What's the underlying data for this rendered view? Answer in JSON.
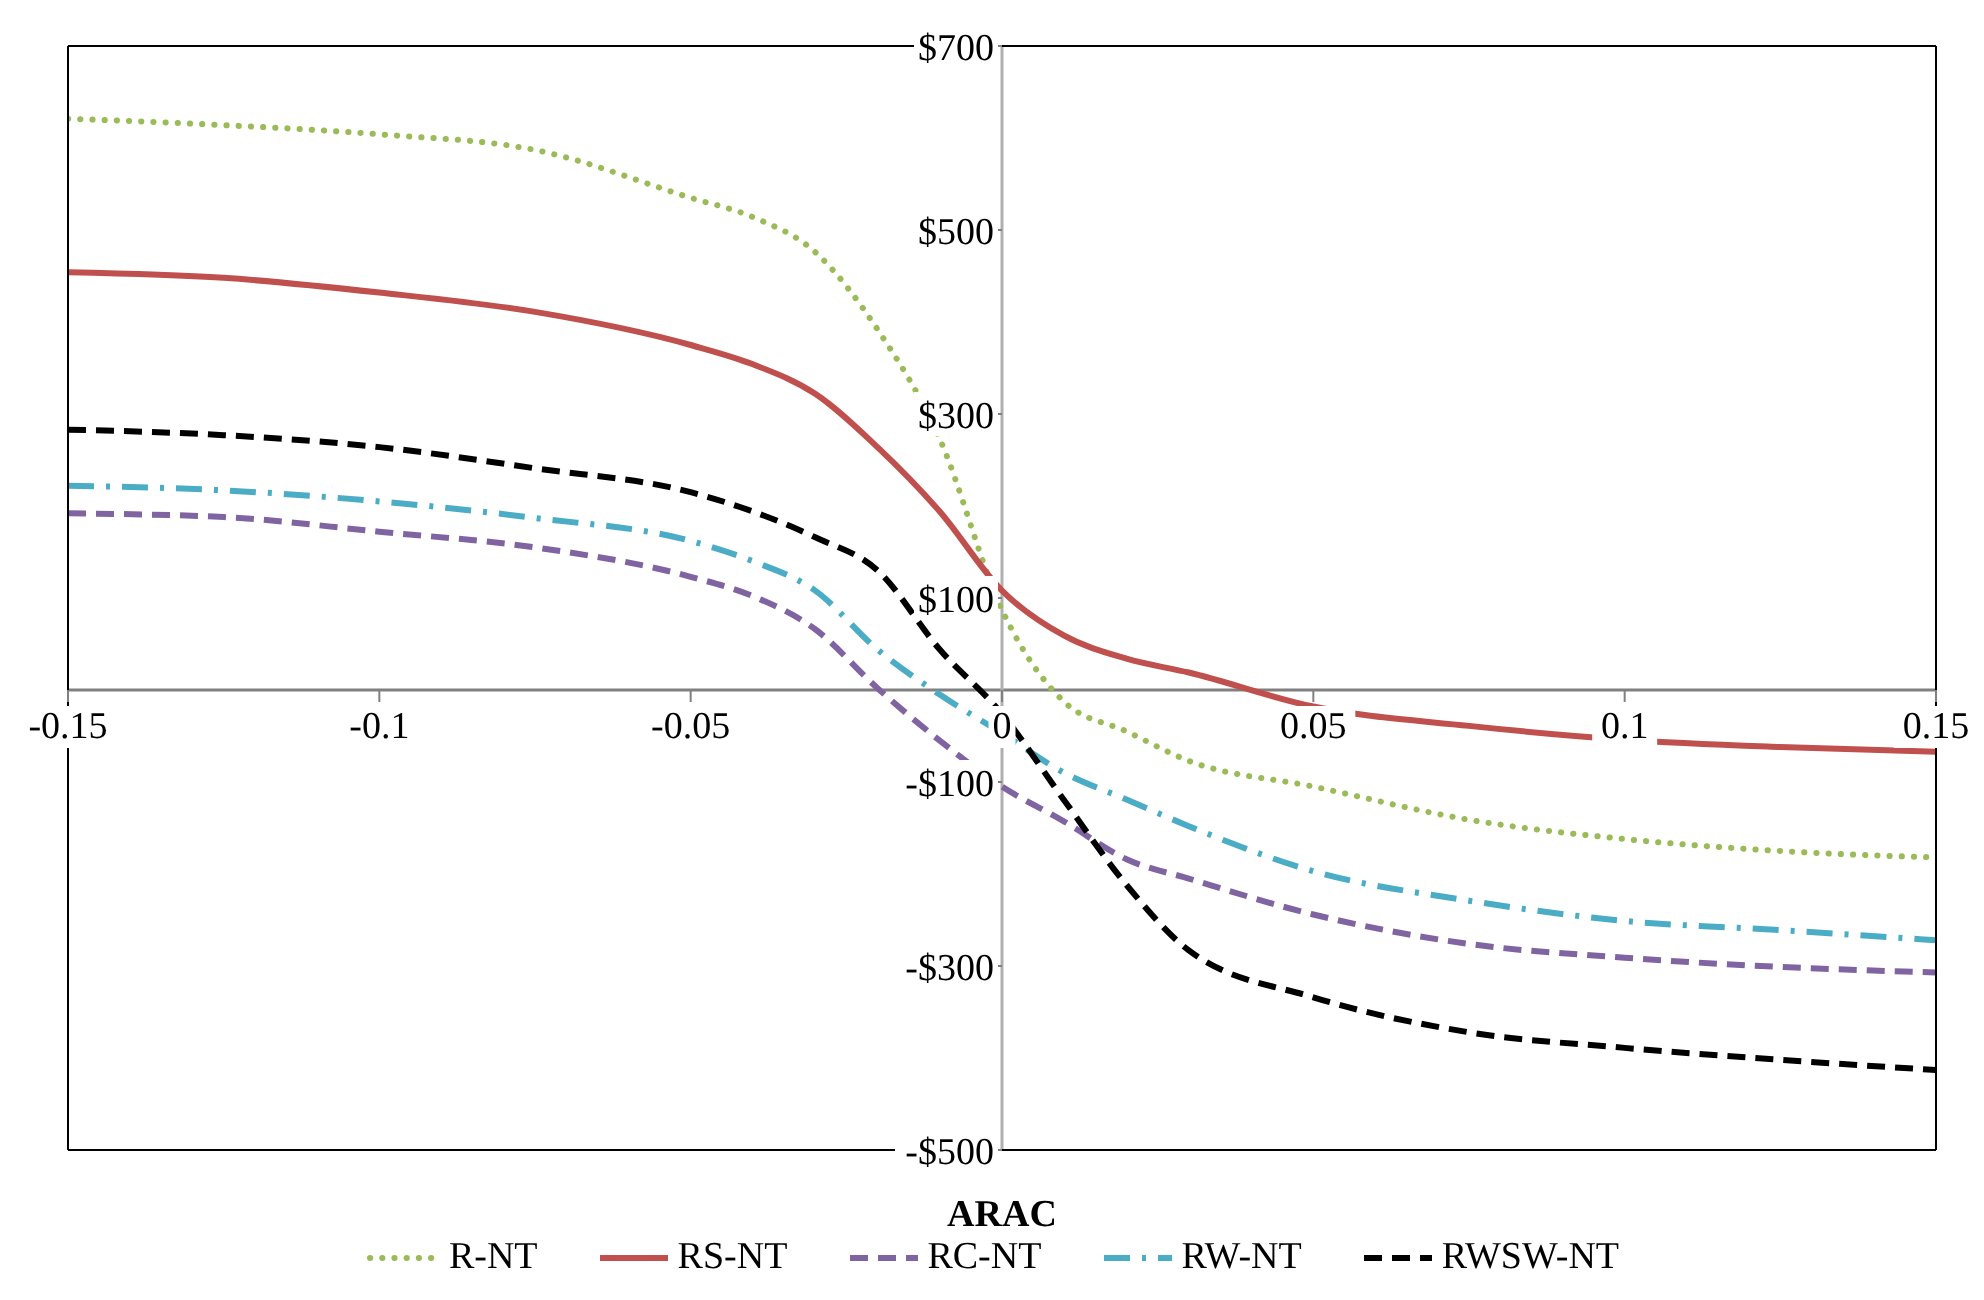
{
  "chart_data": {
    "type": "line",
    "xlabel": "ARAC",
    "x": [
      -0.15,
      -0.125,
      -0.1,
      -0.075,
      -0.05,
      -0.04,
      -0.03,
      -0.02,
      -0.01,
      0,
      0.01,
      0.02,
      0.03,
      0.05,
      0.075,
      0.1,
      0.125,
      0.15
    ],
    "series": [
      {
        "name": "R-NT",
        "color": "#9bbb59",
        "line_style": "dotted",
        "values": [
          621,
          614,
          604,
          587,
          535,
          514,
          476,
          392,
          273,
          87,
          -13,
          -45,
          -77,
          -105,
          -141,
          -162,
          -175,
          -182
        ]
      },
      {
        "name": "RS-NT",
        "color": "#c0504d",
        "line_style": "solid",
        "values": [
          454,
          448,
          432,
          411,
          375,
          354,
          322,
          264,
          194,
          108,
          59,
          34,
          19,
          -18,
          -39,
          -54,
          -62,
          -67
        ]
      },
      {
        "name": "RC-NT",
        "color": "#8064a2",
        "line_style": "dashed",
        "values": [
          192,
          188,
          172,
          155,
          123,
          102,
          66,
          2,
          -55,
          -105,
          -143,
          -184,
          -205,
          -244,
          -276,
          -291,
          -301,
          -307
        ]
      },
      {
        "name": "RW-NT",
        "color": "#4bacc6",
        "line_style": "dashdot",
        "values": [
          222,
          217,
          205,
          187,
          162,
          140,
          108,
          44,
          -5,
          -47,
          -90,
          -119,
          -148,
          -197,
          -229,
          -251,
          -261,
          -272
        ]
      },
      {
        "name": "RWSW-NT",
        "color": "#000000",
        "line_style": "dashed",
        "values": [
          283,
          277,
          264,
          241,
          215,
          194,
          166,
          130,
          44,
          -26,
          -120,
          -212,
          -283,
          -334,
          -372,
          -389,
          -402,
          -413
        ]
      }
    ],
    "xlim": [
      -0.15,
      0.15
    ],
    "xticks": [
      -0.15,
      -0.1,
      -0.05,
      0,
      0.05,
      0.1,
      0.15
    ],
    "ylim": [
      -500,
      700
    ],
    "yticks": [
      {
        "value": -500,
        "label": "-$500"
      },
      {
        "value": -300,
        "label": "-$300"
      },
      {
        "value": -100,
        "label": "-$100"
      },
      {
        "value": 100,
        "label": "$100"
      },
      {
        "value": 300,
        "label": "$300"
      },
      {
        "value": 500,
        "label": "$500"
      },
      {
        "value": 700,
        "label": "$700"
      }
    ],
    "grid": false,
    "legend": "bottom",
    "marker": "none"
  }
}
